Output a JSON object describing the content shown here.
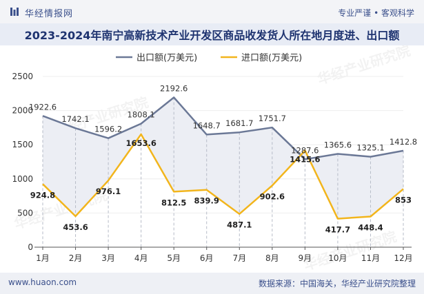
{
  "header": {
    "brand": "华经情报网",
    "tagline": "专业严谨 • 客观科学",
    "title": "2023-2024年南宁高新技术产业开发区商品收发货人所在地月度进、出口额"
  },
  "footer": {
    "site": "www.huaon.com",
    "source": "数据来源：中国海关，华经产业研究院整理"
  },
  "watermark": "华经产业研究院",
  "chart_data": {
    "type": "line",
    "title": "2023-2024年南宁高新技术产业开发区商品收发货人所在地月度进、出口额",
    "categories": [
      "1月",
      "2月",
      "3月",
      "4月",
      "5月",
      "6月",
      "7月",
      "8月",
      "9月",
      "10月",
      "11月",
      "12月"
    ],
    "series": [
      {
        "name": "出口额(万美元)",
        "color": "#6b7896",
        "values": [
          1922.6,
          1742.1,
          1596.2,
          1808.1,
          2192.6,
          1648.7,
          1681.7,
          1751.7,
          1287.6,
          1365.6,
          1325.1,
          1412.8
        ]
      },
      {
        "name": "进口额(万美元)",
        "color": "#f2b51c",
        "values": [
          924.8,
          453.6,
          976.1,
          1653.6,
          812.5,
          839.9,
          487.1,
          902.6,
          1415.6,
          417.7,
          448.4,
          853
        ]
      }
    ],
    "ylim": [
      0,
      2500
    ],
    "yticks": [
      0,
      500,
      1000,
      1500,
      2000,
      2500
    ],
    "legend": "top"
  }
}
